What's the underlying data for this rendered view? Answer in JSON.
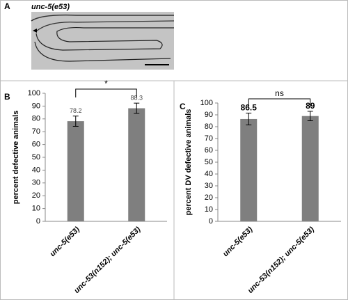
{
  "panel_a": {
    "label": "A",
    "caption": "unc-5(e53)"
  },
  "chart_data": [
    {
      "type": "bar",
      "panel_label": "B",
      "y_label": "percent defective animals",
      "categories": [
        "unc-5(e53)",
        "unc-53(n152); unc-5(e53)"
      ],
      "values": [
        78.2,
        88.3
      ],
      "errors": [
        4,
        4
      ],
      "color": "#7f7f7f",
      "ylim": [
        0,
        100
      ],
      "yticks": [
        0,
        10,
        20,
        30,
        40,
        50,
        60,
        70,
        80,
        90,
        100
      ],
      "annotation": "*",
      "value_label_style": "plain"
    },
    {
      "type": "bar",
      "panel_label": "C",
      "y_label": "percent DV defective animals",
      "categories": [
        "unc-5(e53)",
        "unc-53(n152); unc-5(e53)"
      ],
      "values": [
        86.5,
        89
      ],
      "errors": [
        5,
        4
      ],
      "color": "#7f7f7f",
      "ylim": [
        0,
        100
      ],
      "yticks": [
        0,
        10,
        20,
        30,
        40,
        50,
        60,
        70,
        80,
        90,
        100
      ],
      "annotation": "ns",
      "value_label_style": "bold"
    }
  ]
}
